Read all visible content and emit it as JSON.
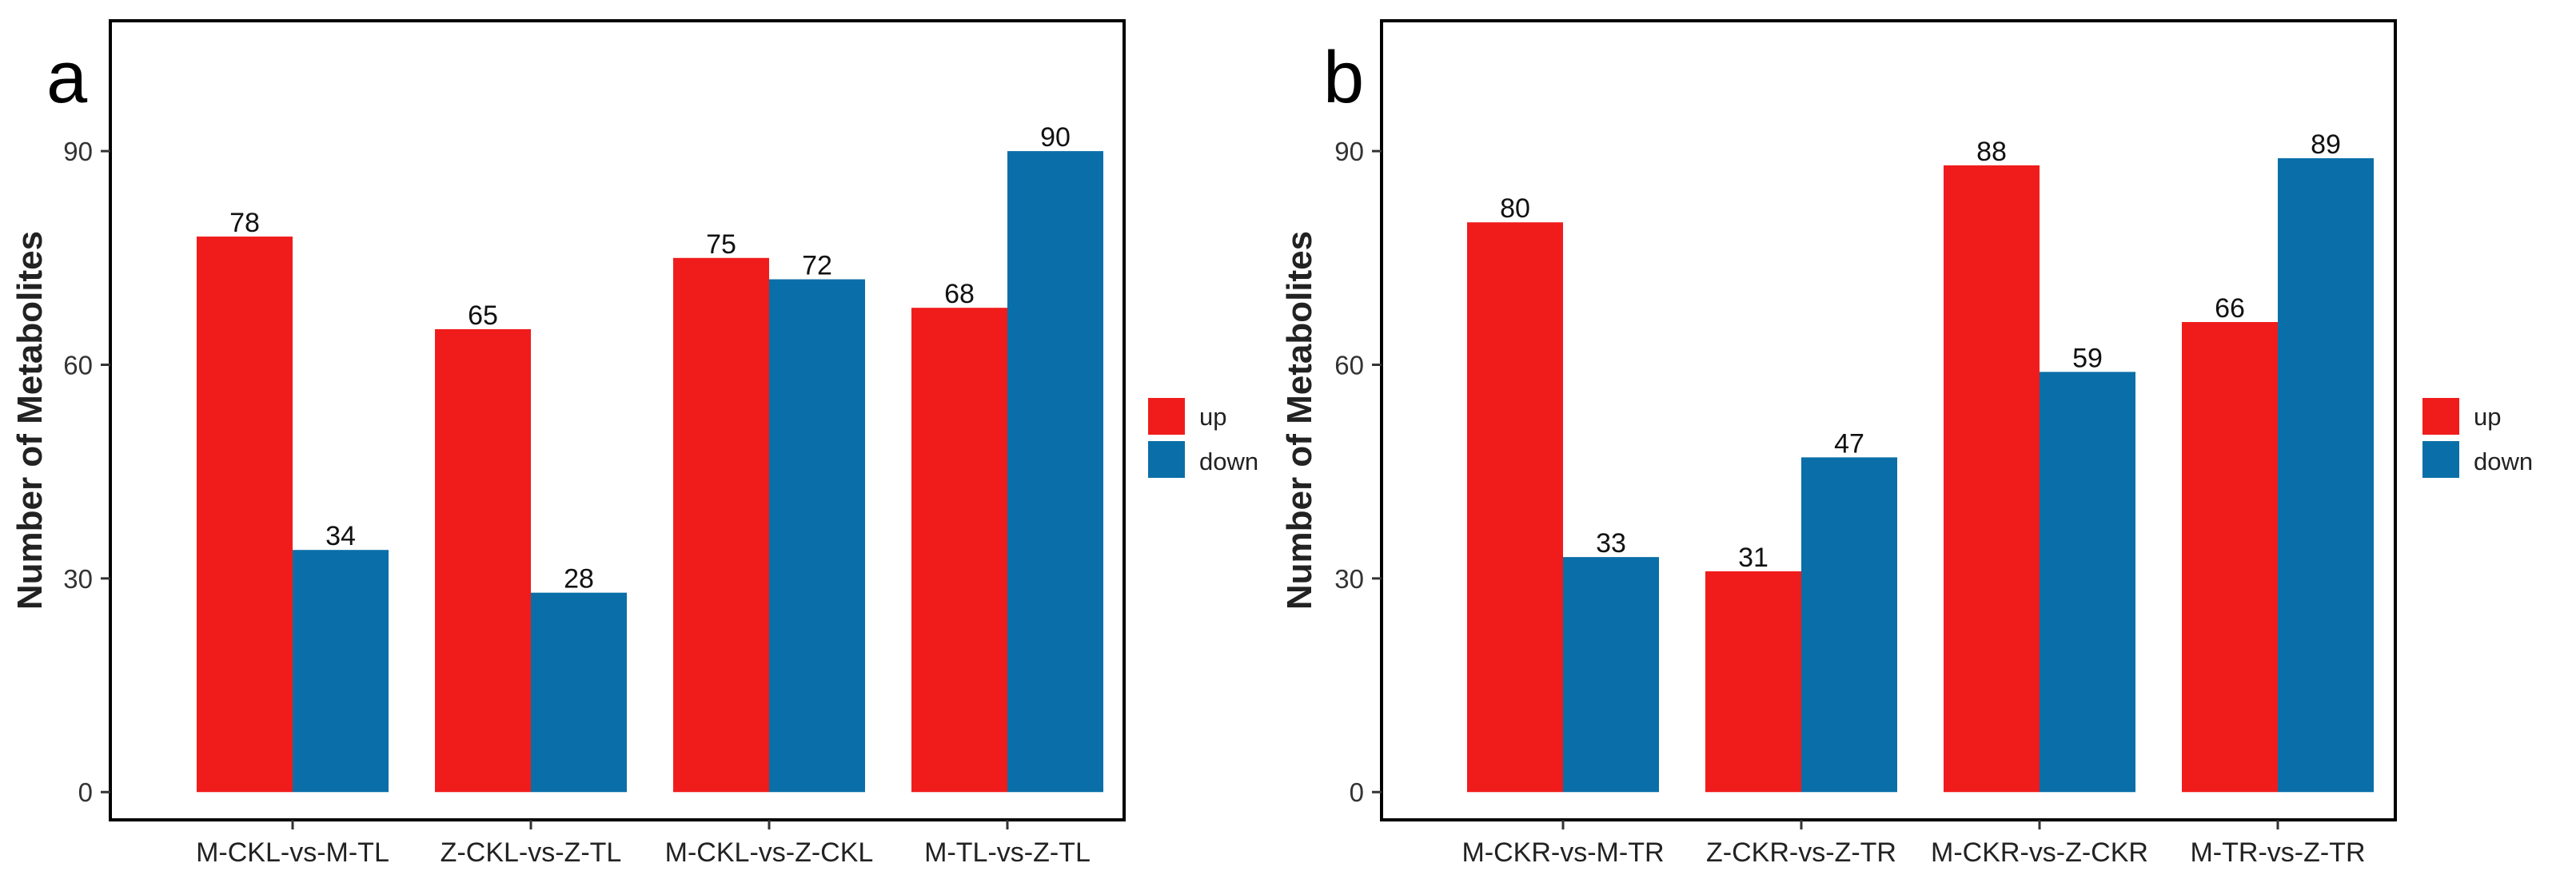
{
  "chart_data": [
    {
      "panel": "a",
      "type": "bar",
      "ylabel": "Number of Metabolites",
      "xlabel": "",
      "categories": [
        "M-CKL-vs-M-TL",
        "Z-CKL-vs-Z-TL",
        "M-CKL-vs-Z-CKL",
        "M-TL-vs-Z-TL"
      ],
      "series": [
        {
          "name": "up",
          "color": "#f01c1c",
          "values": [
            78,
            65,
            75,
            68
          ]
        },
        {
          "name": "down",
          "color": "#0a6fa8",
          "values": [
            34,
            28,
            72,
            90
          ]
        }
      ],
      "yticks": [
        0,
        30,
        60,
        90
      ],
      "ylim": [
        -3.9,
        108.3
      ],
      "legend": "right"
    },
    {
      "panel": "b",
      "type": "bar",
      "ylabel": "Number of Metabolites",
      "xlabel": "",
      "categories": [
        "M-CKR-vs-M-TR",
        "Z-CKR-vs-Z-TR",
        "M-CKR-vs-Z-CKR",
        "M-TR-vs-Z-TR"
      ],
      "series": [
        {
          "name": "up",
          "color": "#f01c1c",
          "values": [
            80,
            31,
            88,
            66
          ]
        },
        {
          "name": "down",
          "color": "#0a6fa8",
          "values": [
            33,
            47,
            59,
            89
          ]
        }
      ],
      "yticks": [
        0,
        30,
        60,
        90
      ],
      "ylim": [
        -3.9,
        108.3
      ],
      "legend": "right"
    }
  ]
}
